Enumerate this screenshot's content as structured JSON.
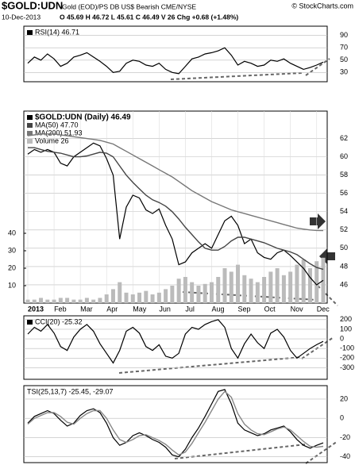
{
  "header": {
    "symbol": "$GOLD:UDN",
    "description": "Gold (EOD)/PS DB US$ Bearish CME/NYSE",
    "copyright": "© StockCharts.com",
    "date": "10-Dec-2013",
    "quote": "O 45.69  H 46.72  L 45.61  C 46.49  V 26  Chg +0.68 (+1.48%)"
  },
  "chart_data": [
    {
      "type": "line",
      "series": [
        {
          "name": "RSI(14) 46.71",
          "color": "#000000",
          "values": [
            45,
            55,
            50,
            60,
            52,
            40,
            45,
            55,
            58,
            62,
            55,
            48,
            40,
            30,
            32,
            45,
            50,
            48,
            42,
            40,
            45,
            35,
            30,
            28,
            40,
            52,
            55,
            60,
            62,
            65,
            70,
            58,
            42,
            48,
            45,
            40,
            42,
            50,
            48,
            52,
            45,
            40,
            35,
            38,
            42,
            46.71
          ]
        }
      ],
      "ylim": [
        15,
        105
      ],
      "yticks": [
        30,
        50,
        70,
        90
      ],
      "grid": true
    },
    {
      "type": "line",
      "categories": [
        "2013",
        null,
        null,
        null,
        "Feb",
        null,
        null,
        null,
        "Mar",
        null,
        null,
        null,
        "Apr",
        null,
        null,
        null,
        "May",
        null,
        null,
        null,
        "Jun",
        null,
        null,
        null,
        "Jul",
        null,
        null,
        null,
        "Aug",
        null,
        null,
        null,
        "Sep",
        null,
        null,
        null,
        "Oct",
        null,
        null,
        null,
        "Nov",
        null,
        null,
        null,
        "Dec",
        null
      ],
      "series": [
        {
          "name": "$GOLD:UDN (Daily) 46.49",
          "color": "#000000",
          "values": [
            60.3,
            60.8,
            60.5,
            60.8,
            60.5,
            59.3,
            59.0,
            60.0,
            60.5,
            61.0,
            61.5,
            61.2,
            59.8,
            58.0,
            51.0,
            54.5,
            55.8,
            55.5,
            54.2,
            53.8,
            54.3,
            52.5,
            51.0,
            48.2,
            48.5,
            49.5,
            50.0,
            50.5,
            50.0,
            51.5,
            53.0,
            53.5,
            52.5,
            50.5,
            51.0,
            49.5,
            49.0,
            48.8,
            49.5,
            49.8,
            49.2,
            48.5,
            47.8,
            46.8,
            46.0,
            46.49
          ]
        },
        {
          "name": "MA(50) 47.70",
          "color": "#444444",
          "values": [
            61,
            61,
            60.8,
            60.6,
            60.5,
            60.4,
            60.2,
            60.0,
            60,
            60.1,
            60.3,
            60.5,
            60.4,
            60,
            59,
            58,
            57.2,
            56.5,
            55.8,
            55.3,
            55,
            54.6,
            54,
            53.2,
            52.3,
            51.5,
            50.7,
            50,
            49.8,
            49.8,
            50.2,
            50.8,
            51.2,
            51.2,
            51,
            50.8,
            50.6,
            50.3,
            50,
            49.8,
            49.6,
            49.3,
            48.8,
            48.3,
            47.9,
            47.7
          ]
        },
        {
          "name": "MA(200) 51.93",
          "color": "#777777",
          "values": [
            62.3,
            62.4,
            62.5,
            62.5,
            62.5,
            62.4,
            62.3,
            62.2,
            62.1,
            62,
            61.9,
            61.8,
            61.6,
            61.4,
            61,
            60.6,
            60.2,
            59.8,
            59.4,
            59,
            58.6,
            58.2,
            57.8,
            57.3,
            56.8,
            56.3,
            55.9,
            55.5,
            55.1,
            54.8,
            54.5,
            54.2,
            54,
            53.8,
            53.6,
            53.4,
            53.2,
            53,
            52.8,
            52.6,
            52.4,
            52.2,
            52.1,
            52,
            51.95,
            51.93
          ]
        },
        {
          "name": "Volume 26",
          "color": "#bbbbbb",
          "axis": "y2",
          "values": [
            2,
            2,
            3,
            2,
            2,
            3,
            3,
            2,
            2,
            3,
            2,
            3,
            5,
            8,
            12,
            6,
            5,
            6,
            7,
            5,
            6,
            8,
            10,
            14,
            15,
            12,
            10,
            11,
            12,
            15,
            20,
            18,
            22,
            16,
            14,
            12,
            15,
            18,
            20,
            16,
            18,
            22,
            25,
            20,
            24,
            26
          ]
        }
      ],
      "ylim": [
        44,
        65
      ],
      "yticks": [
        46,
        48,
        50,
        52,
        54,
        56,
        58,
        60,
        62
      ],
      "y2lim": [
        0,
        110
      ],
      "y2ticks": [
        10,
        20,
        30,
        40
      ],
      "grid": true
    },
    {
      "type": "line",
      "series": [
        {
          "name": "CCI(20) -25.32",
          "color": "#000000",
          "values": [
            50,
            120,
            80,
            150,
            60,
            -80,
            -120,
            20,
            100,
            150,
            80,
            -50,
            -150,
            -250,
            -120,
            80,
            120,
            60,
            -80,
            -120,
            -60,
            -180,
            -200,
            -150,
            50,
            120,
            100,
            150,
            180,
            200,
            120,
            -100,
            -200,
            -50,
            50,
            -40,
            -100,
            60,
            100,
            20,
            -120,
            -200,
            -150,
            -100,
            -60,
            -25.32
          ]
        }
      ],
      "ylim": [
        -420,
        240
      ],
      "yticks": [
        -300,
        -200,
        -100,
        0,
        100,
        200
      ],
      "grid": true
    },
    {
      "type": "line",
      "title": "TSI(25,13,7) -25.45, -29.07",
      "series": [
        {
          "color": "#000000",
          "values": [
            -5,
            2,
            5,
            8,
            5,
            -2,
            -8,
            -5,
            3,
            8,
            10,
            6,
            -5,
            -20,
            -28,
            -25,
            -18,
            -15,
            -18,
            -22,
            -25,
            -30,
            -38,
            -40,
            -32,
            -20,
            -10,
            2,
            15,
            28,
            30,
            15,
            -5,
            -12,
            -15,
            -18,
            -16,
            -12,
            -10,
            -8,
            -14,
            -22,
            -28,
            -31,
            -28,
            -25.45
          ]
        },
        {
          "color": "#888888",
          "values": [
            -6,
            0,
            3,
            6,
            6,
            2,
            -4,
            -6,
            0,
            5,
            8,
            8,
            0,
            -12,
            -22,
            -25,
            -22,
            -18,
            -17,
            -20,
            -23,
            -27,
            -33,
            -38,
            -35,
            -26,
            -15,
            -4,
            8,
            20,
            28,
            22,
            5,
            -6,
            -12,
            -16,
            -17,
            -14,
            -11,
            -9,
            -12,
            -18,
            -24,
            -29,
            -30,
            -29.07
          ]
        }
      ],
      "ylim": [
        -46,
        34
      ],
      "yticks": [
        -40,
        -20,
        0,
        20
      ],
      "grid": true
    }
  ]
}
